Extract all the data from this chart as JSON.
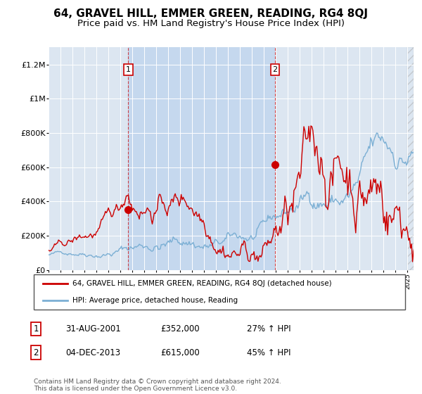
{
  "title": "64, GRAVEL HILL, EMMER GREEN, READING, RG4 8QJ",
  "subtitle": "Price paid vs. HM Land Registry's House Price Index (HPI)",
  "title_fontsize": 11,
  "subtitle_fontsize": 9.5,
  "legend_label_red": "64, GRAVEL HILL, EMMER GREEN, READING, RG4 8QJ (detached house)",
  "legend_label_blue": "HPI: Average price, detached house, Reading",
  "footer": "Contains HM Land Registry data © Crown copyright and database right 2024.\nThis data is licensed under the Open Government Licence v3.0.",
  "sale1_date_str": "31-AUG-2001",
  "sale1_price_str": "£352,000",
  "sale1_hpi_str": "27% ↑ HPI",
  "sale1_x": 2001.667,
  "sale1_y": 352000,
  "sale2_date_str": "04-DEC-2013",
  "sale2_price_str": "£615,000",
  "sale2_hpi_str": "45% ↑ HPI",
  "sale2_x": 2013.917,
  "sale2_y": 615000,
  "ylim": [
    0,
    1300000
  ],
  "xlim_start": 1995.0,
  "xlim_end": 2025.5,
  "fig_bg": "#ffffff",
  "plot_bg": "#dce6f1",
  "highlight_bg": "#c5d8ee",
  "red_color": "#cc0000",
  "blue_color": "#7bafd4",
  "grid_color": "#ffffff",
  "yticks": [
    0,
    200000,
    400000,
    600000,
    800000,
    1000000,
    1200000
  ],
  "ylabels": [
    "£0",
    "£200K",
    "£400K",
    "£600K",
    "£800K",
    "£1M",
    "£1.2M"
  ]
}
